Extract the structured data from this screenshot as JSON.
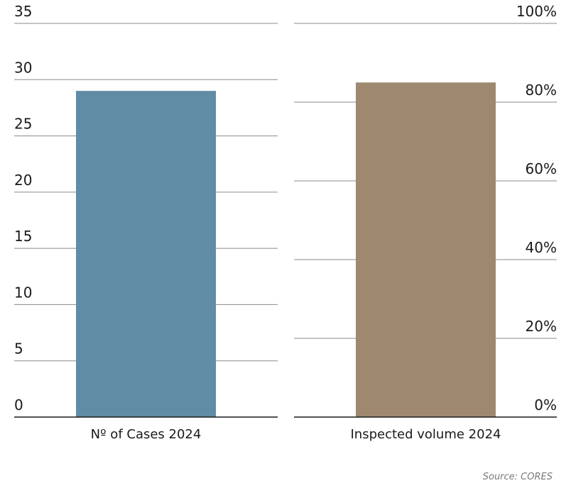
{
  "chart_data": [
    {
      "type": "bar",
      "categories": [
        "Nº of Cases 2024"
      ],
      "values": [
        29
      ],
      "ylim": [
        0,
        35
      ],
      "yticks": [
        "0",
        "5",
        "10",
        "15",
        "20",
        "25",
        "30",
        "35"
      ],
      "ytick_values": [
        0,
        5,
        10,
        15,
        20,
        25,
        30,
        35
      ],
      "axis_side": "left",
      "color": "#608ca6",
      "grid": true,
      "title": "",
      "xlabel": "",
      "ylabel": ""
    },
    {
      "type": "bar",
      "categories": [
        "Inspected volume 2024"
      ],
      "values": [
        85
      ],
      "ylim": [
        0,
        100
      ],
      "yticks": [
        "0%",
        "20%",
        "40%",
        "60%",
        "80%",
        "100%"
      ],
      "ytick_values": [
        0,
        20,
        40,
        60,
        80,
        100
      ],
      "axis_side": "right",
      "color": "#9e8870",
      "grid": true,
      "title": "",
      "xlabel": "",
      "ylabel": ""
    }
  ],
  "source": "Source: CORES"
}
